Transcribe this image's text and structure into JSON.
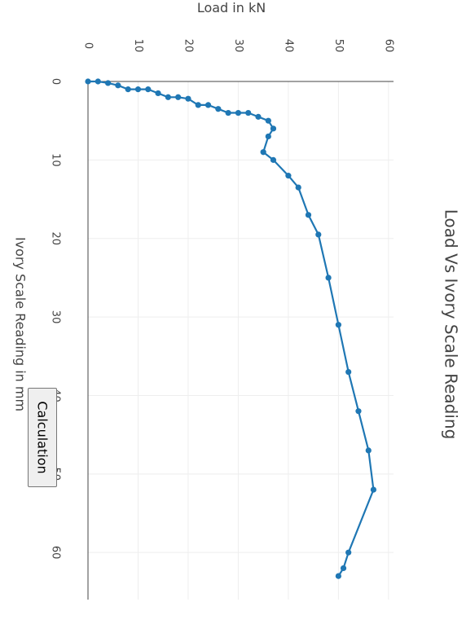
{
  "chart_data": {
    "type": "line",
    "title": "Load Vs Ivory Scale Reading",
    "xlabel": "Ivory Scale Reading in mm",
    "ylabel": "Load in kN",
    "xlim": [
      0,
      66
    ],
    "ylim": [
      0,
      61
    ],
    "x_ticks": [
      0,
      10,
      20,
      30,
      40,
      50,
      60
    ],
    "y_ticks": [
      0,
      10,
      20,
      30,
      40,
      50,
      60
    ],
    "grid": true,
    "series": [
      {
        "color": "#1f77b4",
        "points": [
          [
            0,
            0
          ],
          [
            0,
            2
          ],
          [
            0.2,
            4
          ],
          [
            0.5,
            6
          ],
          [
            1,
            8
          ],
          [
            1,
            10
          ],
          [
            1,
            12
          ],
          [
            1.5,
            14
          ],
          [
            2,
            16
          ],
          [
            2,
            18
          ],
          [
            2.2,
            20
          ],
          [
            3,
            22
          ],
          [
            3,
            24
          ],
          [
            3.5,
            26
          ],
          [
            4,
            28
          ],
          [
            4,
            30
          ],
          [
            4,
            32
          ],
          [
            4.5,
            34
          ],
          [
            5,
            36
          ],
          [
            6,
            37
          ],
          [
            7,
            36
          ],
          [
            9,
            35
          ],
          [
            10,
            37
          ],
          [
            12,
            40
          ],
          [
            13.5,
            42
          ],
          [
            17,
            44
          ],
          [
            19.5,
            46
          ],
          [
            25,
            48
          ],
          [
            31,
            50
          ],
          [
            37,
            52
          ],
          [
            42,
            54
          ],
          [
            47,
            56
          ],
          [
            52,
            57
          ],
          [
            60,
            52
          ],
          [
            62,
            51
          ],
          [
            63,
            50
          ]
        ]
      }
    ]
  },
  "controls": {
    "calc_label": "Calculation"
  }
}
